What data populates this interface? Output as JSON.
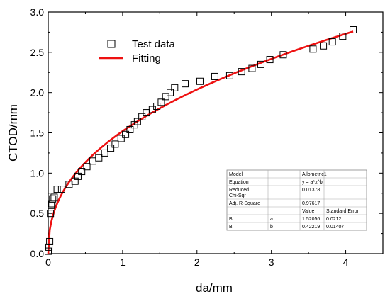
{
  "chart_data": {
    "type": "scatter",
    "xlabel": "da/mm",
    "ylabel": "CTOD/mm",
    "xlim": [
      0,
      4.5
    ],
    "ylim": [
      0,
      3.0
    ],
    "x_ticks": [
      "0",
      "1",
      "2",
      "3",
      "4"
    ],
    "y_ticks": [
      "0.0",
      "0.5",
      "1.0",
      "1.5",
      "2.0",
      "2.5",
      "3.0"
    ],
    "legend_position": "top-left",
    "series": [
      {
        "name": "Test data",
        "type": "scatter",
        "marker": "open-square",
        "color": "#000000",
        "x": [
          0.0,
          0.01,
          0.02,
          0.03,
          0.04,
          0.05,
          0.06,
          0.08,
          0.12,
          0.18,
          0.28,
          0.36,
          0.4,
          0.45,
          0.52,
          0.6,
          0.68,
          0.76,
          0.84,
          0.9,
          0.98,
          1.04,
          1.1,
          1.16,
          1.2,
          1.26,
          1.32,
          1.4,
          1.46,
          1.52,
          1.58,
          1.64,
          1.7,
          1.84,
          2.04,
          2.24,
          2.44,
          2.6,
          2.74,
          2.86,
          2.98,
          3.16,
          3.56,
          3.7,
          3.82,
          3.96,
          4.1
        ],
        "y": [
          0.03,
          0.08,
          0.15,
          0.5,
          0.6,
          0.62,
          0.68,
          0.7,
          0.8,
          0.8,
          0.86,
          0.9,
          0.96,
          1.02,
          1.08,
          1.15,
          1.19,
          1.25,
          1.31,
          1.36,
          1.43,
          1.48,
          1.54,
          1.6,
          1.64,
          1.7,
          1.75,
          1.79,
          1.83,
          1.88,
          1.95,
          2.0,
          2.06,
          2.11,
          2.14,
          2.2,
          2.21,
          2.26,
          2.3,
          2.35,
          2.41,
          2.47,
          2.54,
          2.58,
          2.63,
          2.7,
          2.78
        ]
      },
      {
        "name": "Fitting",
        "type": "line",
        "color": "#ee1111",
        "model": "y = a*x^b",
        "a": 1.52056,
        "b": 0.42219,
        "x_range": [
          0.0,
          4.1
        ]
      }
    ]
  },
  "fit_table": {
    "rows": [
      [
        "Model",
        "",
        "Allometric1",
        ""
      ],
      [
        "Equation",
        "",
        "y = a*x^b",
        ""
      ],
      [
        "Reduced Chi-Sqr",
        "",
        "0.01378",
        ""
      ],
      [
        "Adj. R-Square",
        "",
        "0.97617",
        ""
      ],
      [
        "",
        "",
        "Value",
        "Standard Error"
      ],
      [
        "B",
        "a",
        "1.52056",
        "0.0212"
      ],
      [
        "B",
        "b",
        "0.42219",
        "0.01407"
      ]
    ]
  }
}
